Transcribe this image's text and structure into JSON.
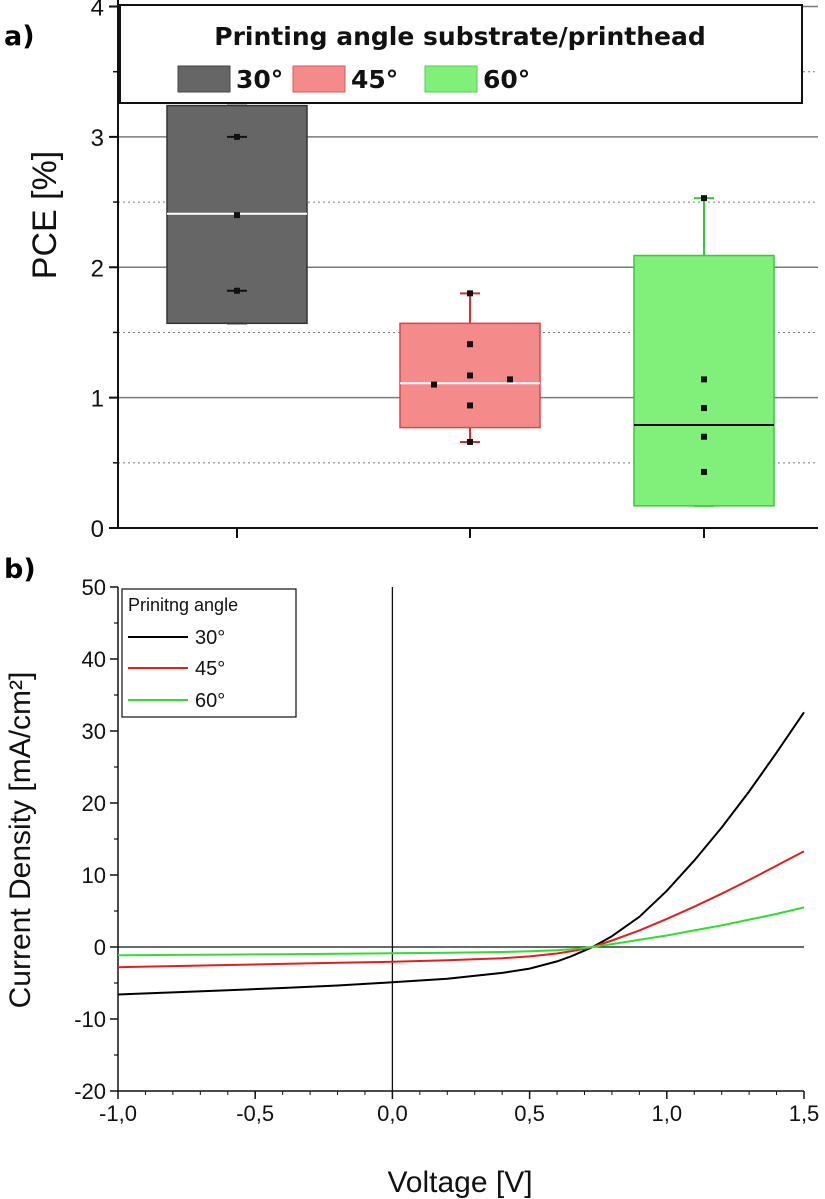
{
  "colors": {
    "series_30": "#666666",
    "series_45": "#f58a8a",
    "series_60": "#80f07a",
    "line_30": "#000000",
    "line_45": "#e02020",
    "line_60": "#30dd30",
    "grid": "#7a7a7a"
  },
  "chart_data": [
    {
      "type": "box",
      "panel_label": "a)",
      "ylabel": "PCE [%]",
      "ylim": [
        0,
        4.05
      ],
      "yticks": [
        0,
        1,
        2,
        3,
        4
      ],
      "ytick_labels": [
        "0",
        "1",
        "2",
        "3",
        "4"
      ],
      "grid": "major solid, minor dotted",
      "legend": {
        "title": "Printing angle substrate/printhead",
        "placement": "top",
        "entries": [
          "30°",
          "45°",
          "60°"
        ]
      },
      "series": [
        {
          "name": "30°",
          "box": {
            "q1": 1.57,
            "median": 2.41,
            "q3": 3.24,
            "whisker_low": 1.57,
            "whisker_high": 3.24
          },
          "points": [
            3.0,
            2.4,
            1.82
          ]
        },
        {
          "name": "45°",
          "box": {
            "q1": 0.77,
            "median": 1.11,
            "q3": 1.57,
            "whisker_low": 0.66,
            "whisker_high": 1.8
          },
          "points": [
            1.8,
            1.41,
            1.17,
            1.14,
            1.1,
            0.94,
            0.66
          ]
        },
        {
          "name": "60°",
          "box": {
            "q1": 0.17,
            "median": 0.79,
            "q3": 2.09,
            "whisker_low": 0.17,
            "whisker_high": 2.53
          },
          "points": [
            2.53,
            1.14,
            0.92,
            0.7,
            0.43
          ]
        }
      ]
    },
    {
      "type": "line",
      "panel_label": "b)",
      "xlabel": "Voltage [V]",
      "ylabel": "Current Density [mA/cm²]",
      "xlim": [
        -1.0,
        1.5
      ],
      "ylim": [
        -20,
        50
      ],
      "xticks": [
        -1.0,
        -0.5,
        0.0,
        0.5,
        1.0,
        1.5
      ],
      "xtick_labels": [
        "-1,0",
        "-0,5",
        "0,0",
        "0,5",
        "1,0",
        "1,5"
      ],
      "yticks": [
        -20,
        -10,
        0,
        10,
        20,
        30,
        40,
        50
      ],
      "ytick_labels": [
        "-20",
        "-10",
        "0",
        "10",
        "20",
        "30",
        "40",
        "50"
      ],
      "legend": {
        "title": "Prinitng angle",
        "placement": "top-left"
      },
      "series": [
        {
          "name": "30°",
          "x": [
            -1.0,
            -0.8,
            -0.6,
            -0.4,
            -0.2,
            0.0,
            0.2,
            0.4,
            0.5,
            0.6,
            0.65,
            0.7,
            0.73,
            0.8,
            0.9,
            1.0,
            1.1,
            1.2,
            1.3,
            1.4,
            1.5
          ],
          "y": [
            -6.6,
            -6.3,
            -6.0,
            -5.7,
            -5.35,
            -4.9,
            -4.4,
            -3.6,
            -3.0,
            -2.0,
            -1.3,
            -0.5,
            0.0,
            1.5,
            4.2,
            7.8,
            12.0,
            16.6,
            21.6,
            27.0,
            32.6
          ]
        },
        {
          "name": "45°",
          "x": [
            -1.0,
            -0.8,
            -0.6,
            -0.4,
            -0.2,
            0.0,
            0.2,
            0.4,
            0.5,
            0.6,
            0.65,
            0.7,
            0.73,
            0.8,
            0.9,
            1.0,
            1.1,
            1.2,
            1.3,
            1.4,
            1.5
          ],
          "y": [
            -2.8,
            -2.65,
            -2.5,
            -2.35,
            -2.2,
            -2.05,
            -1.85,
            -1.55,
            -1.3,
            -0.9,
            -0.6,
            -0.25,
            0.0,
            0.9,
            2.3,
            3.9,
            5.6,
            7.4,
            9.3,
            11.3,
            13.3
          ]
        },
        {
          "name": "60°",
          "x": [
            -1.0,
            -0.8,
            -0.6,
            -0.4,
            -0.2,
            0.0,
            0.2,
            0.4,
            0.5,
            0.6,
            0.65,
            0.7,
            0.73,
            0.8,
            0.9,
            1.0,
            1.1,
            1.2,
            1.3,
            1.4,
            1.5
          ],
          "y": [
            -1.15,
            -1.1,
            -1.05,
            -1.0,
            -0.95,
            -0.88,
            -0.8,
            -0.7,
            -0.6,
            -0.45,
            -0.32,
            -0.12,
            0.0,
            0.4,
            1.0,
            1.6,
            2.3,
            3.0,
            3.8,
            4.6,
            5.5
          ]
        }
      ]
    }
  ]
}
